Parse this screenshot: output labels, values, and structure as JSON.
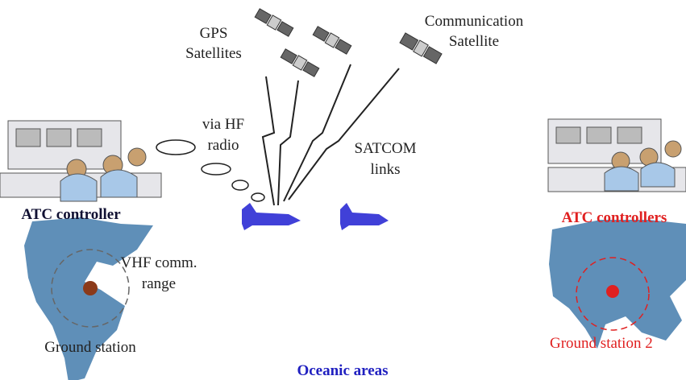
{
  "labels": {
    "gps": [
      "GPS",
      "Satellites"
    ],
    "comm_sat": [
      "Communication",
      "Satellite"
    ],
    "hf": [
      "via HF",
      "radio"
    ],
    "satcom": [
      "SATCOM",
      "links"
    ],
    "atc_left": "ATC controller",
    "atc_right": "ATC controllers",
    "vhf": [
      "VHF comm.",
      "range"
    ],
    "ground_left": "Ground station",
    "ground_right": "Ground station 2",
    "ocean": "Oceanic areas"
  }
}
